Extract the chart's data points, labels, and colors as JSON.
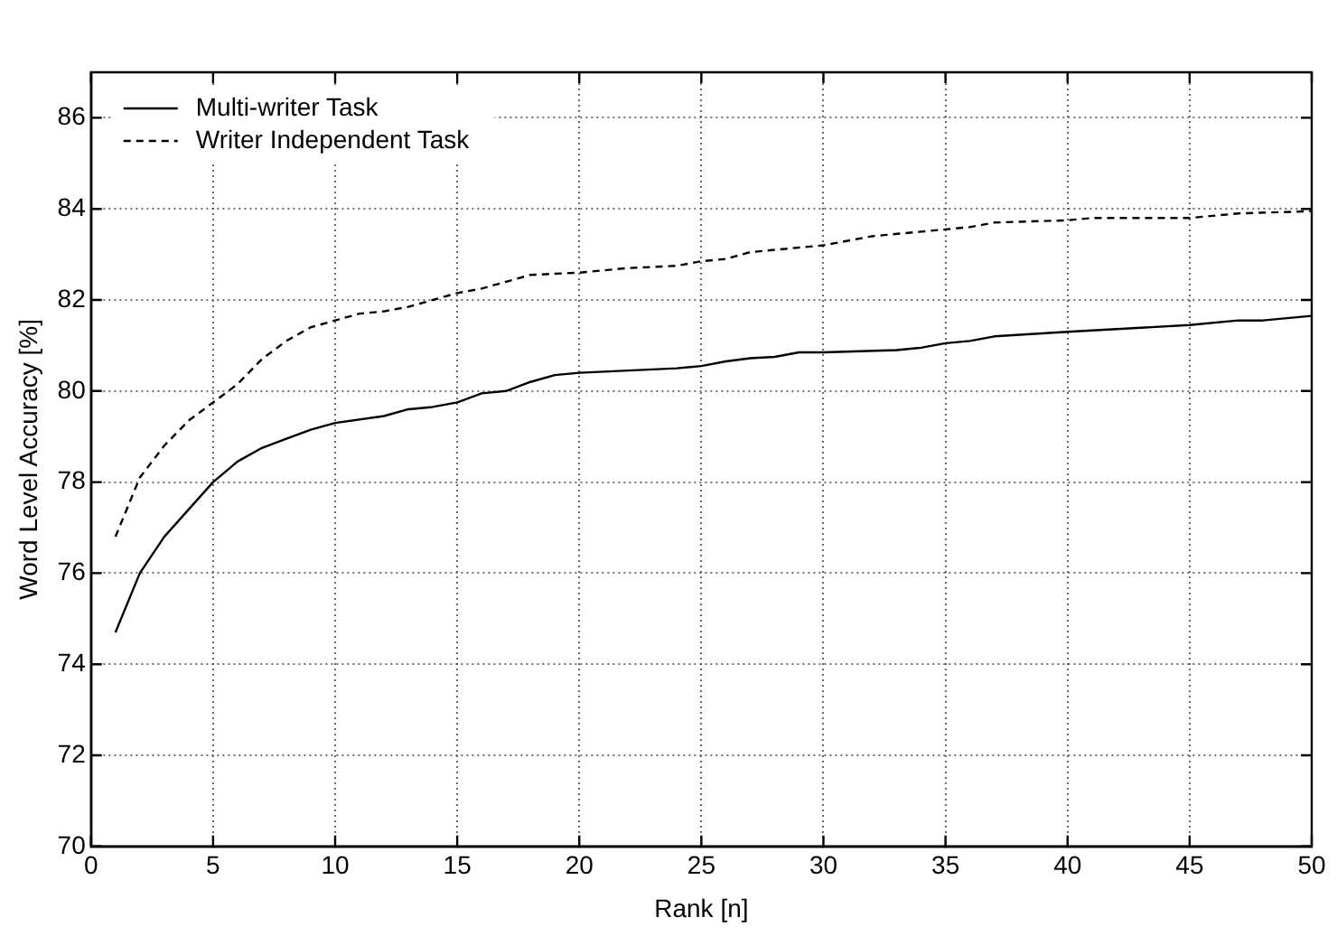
{
  "chart_data": {
    "type": "line",
    "xlabel": "Rank [n]",
    "ylabel": "Word Level Accuracy [%]",
    "xlim": [
      0,
      50
    ],
    "xticks": [
      0,
      5,
      10,
      15,
      20,
      25,
      30,
      35,
      40,
      45,
      50
    ],
    "ylim": [
      70,
      87
    ],
    "yticks": [
      70,
      72,
      74,
      76,
      78,
      80,
      82,
      84,
      86
    ],
    "grid": true,
    "legend": "top left",
    "marker": "none",
    "series": [
      {
        "name": "Multi-writer Task",
        "color": "#000000",
        "line_style": "solid",
        "x": [
          1,
          2,
          3,
          4,
          5,
          6,
          7,
          8,
          9,
          10,
          12,
          13,
          14,
          15,
          16,
          17,
          18,
          19,
          20,
          22,
          24,
          25,
          26,
          27,
          28,
          29,
          30,
          33,
          34,
          35,
          36,
          37,
          40,
          45,
          47,
          48,
          50
        ],
        "values": [
          74.7,
          76.0,
          76.8,
          77.4,
          78.0,
          78.45,
          78.75,
          78.95,
          79.15,
          79.3,
          79.45,
          79.6,
          79.65,
          79.75,
          79.95,
          80.0,
          80.2,
          80.35,
          80.4,
          80.45,
          80.5,
          80.55,
          80.65,
          80.72,
          80.75,
          80.85,
          80.85,
          80.9,
          80.95,
          81.05,
          81.1,
          81.2,
          81.3,
          81.45,
          81.55,
          81.55,
          81.65
        ]
      },
      {
        "name": "Writer Independent Task",
        "color": "#000000",
        "line_style": "dashed",
        "x": [
          1,
          2,
          3,
          4,
          5,
          6,
          7,
          8,
          9,
          10,
          11,
          12,
          13,
          14,
          15,
          16,
          17,
          18,
          20,
          22,
          24,
          25,
          26,
          27,
          28,
          29,
          30,
          31,
          32,
          34,
          35,
          36,
          37,
          40,
          41,
          45,
          47,
          50
        ],
        "values": [
          76.8,
          78.1,
          78.8,
          79.35,
          79.75,
          80.15,
          80.7,
          81.1,
          81.4,
          81.55,
          81.7,
          81.75,
          81.85,
          82.0,
          82.15,
          82.25,
          82.4,
          82.55,
          82.6,
          82.7,
          82.75,
          82.85,
          82.9,
          83.05,
          83.1,
          83.15,
          83.2,
          83.3,
          83.4,
          83.5,
          83.55,
          83.6,
          83.7,
          83.75,
          83.8,
          83.8,
          83.9,
          83.95
        ]
      }
    ]
  }
}
